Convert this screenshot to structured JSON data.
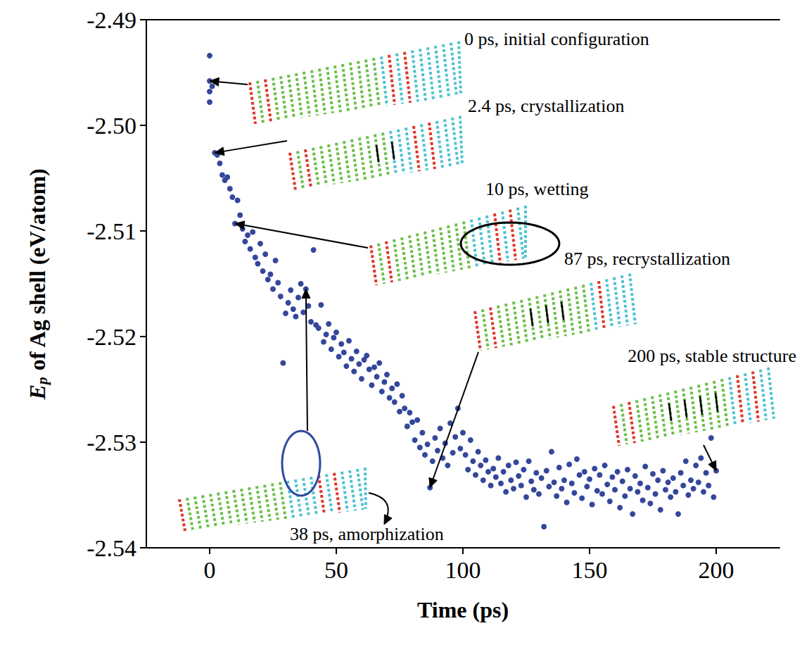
{
  "chart_data": {
    "type": "scatter",
    "x_label": "Time (ps)",
    "y_label": "Ep of Ag shell (eV/atom)",
    "color": "#35479b",
    "marker": "circle",
    "grid": false,
    "xlim": [
      -25,
      225
    ],
    "xticks": [
      0,
      50,
      100,
      150,
      200
    ],
    "ylim": [
      -2.54,
      -2.49
    ],
    "yticks": [
      -2.54,
      -2.53,
      -2.52,
      -2.51,
      {
        "value": -2.5,
        "label": "-2.50"
      },
      -2.49
    ],
    "annotations": [
      {
        "text": "0 ps, initial configuration",
        "time": 0
      },
      {
        "text": "2.4 ps, crystallization",
        "time": 2.4
      },
      {
        "text": "10 ps, wetting",
        "time": 10
      },
      {
        "text": "38 ps, amorphization",
        "time": 38
      },
      {
        "text": "87 ps, recrystallization",
        "time": 87
      },
      {
        "text": "200 ps, stable structure",
        "time": 200
      }
    ],
    "x": [
      0,
      0,
      0,
      0,
      1,
      2,
      3,
      4,
      5,
      6,
      7,
      8,
      9,
      10,
      11,
      12,
      13,
      14,
      15,
      16,
      17,
      18,
      19,
      20,
      21,
      22,
      23,
      24,
      25,
      26,
      27,
      28,
      29,
      30,
      31,
      32,
      33,
      34,
      35,
      36,
      37,
      38,
      39,
      40,
      41,
      42,
      43,
      44,
      45,
      46,
      47,
      48,
      49,
      50,
      51,
      52,
      53,
      54,
      55,
      56,
      57,
      58,
      59,
      60,
      61,
      62,
      63,
      64,
      65,
      66,
      67,
      68,
      69,
      70,
      71,
      72,
      73,
      74,
      75,
      76,
      77,
      78,
      79,
      80,
      81,
      82,
      83,
      84,
      85,
      86,
      87,
      88,
      89,
      90,
      91,
      92,
      93,
      94,
      95,
      96,
      97,
      98,
      99,
      100,
      101,
      102,
      103,
      104,
      105,
      106,
      107,
      108,
      109,
      110,
      111,
      112,
      113,
      114,
      115,
      116,
      117,
      118,
      119,
      120,
      121,
      122,
      123,
      124,
      125,
      126,
      127,
      128,
      129,
      130,
      131,
      132,
      133,
      134,
      135,
      136,
      137,
      138,
      139,
      140,
      141,
      142,
      143,
      144,
      145,
      146,
      147,
      148,
      149,
      150,
      151,
      152,
      153,
      154,
      155,
      156,
      157,
      158,
      159,
      160,
      161,
      162,
      163,
      164,
      165,
      166,
      167,
      168,
      169,
      170,
      171,
      172,
      173,
      174,
      175,
      176,
      177,
      178,
      179,
      180,
      181,
      182,
      183,
      184,
      185,
      186,
      187,
      188,
      189,
      190,
      191,
      192,
      193,
      194,
      195,
      196,
      197,
      198,
      199,
      200
    ],
    "values": [
      -2.4958,
      -2.4934,
      -2.4968,
      -2.4978,
      -2.4963,
      -2.5026,
      -2.5028,
      -2.5036,
      -2.5047,
      -2.5052,
      -2.5049,
      -2.506,
      -2.5068,
      -2.5093,
      -2.5071,
      -2.5085,
      -2.5098,
      -2.511,
      -2.5104,
      -2.5117,
      -2.5101,
      -2.5125,
      -2.5131,
      -2.5112,
      -2.5138,
      -2.5122,
      -2.5146,
      -2.5141,
      -2.5155,
      -2.5128,
      -2.5149,
      -2.5162,
      -2.5225,
      -2.5178,
      -2.5168,
      -2.5156,
      -2.5174,
      -2.5181,
      -2.5163,
      -2.515,
      -2.5177,
      -2.5155,
      -2.5171,
      -2.5186,
      -2.5118,
      -2.5189,
      -2.5192,
      -2.517,
      -2.5205,
      -2.5198,
      -2.5188,
      -2.5212,
      -2.5201,
      -2.5196,
      -2.5219,
      -2.5207,
      -2.5215,
      -2.5228,
      -2.5204,
      -2.5221,
      -2.5233,
      -2.5214,
      -2.5226,
      -2.524,
      -2.5222,
      -2.5218,
      -2.5231,
      -2.5246,
      -2.5229,
      -2.5238,
      -2.5225,
      -2.5252,
      -2.5243,
      -2.5236,
      -2.5258,
      -2.5249,
      -2.5262,
      -2.5245,
      -2.5271,
      -2.5256,
      -2.5268,
      -2.5285,
      -2.5272,
      -2.5281,
      -2.5298,
      -2.5279,
      -2.5305,
      -2.5291,
      -2.5312,
      -2.5302,
      -2.5343,
      -2.5318,
      -2.5296,
      -2.5308,
      -2.5287,
      -2.5315,
      -2.5301,
      -2.5322,
      -2.5282,
      -2.531,
      -2.5295,
      -2.5268,
      -2.5306,
      -2.5291,
      -2.5312,
      -2.5326,
      -2.5298,
      -2.5318,
      -2.5331,
      -2.5309,
      -2.5322,
      -2.5336,
      -2.5317,
      -2.5328,
      -2.5341,
      -2.5325,
      -2.5333,
      -2.5315,
      -2.5339,
      -2.5328,
      -2.5347,
      -2.5322,
      -2.5336,
      -2.5344,
      -2.5319,
      -2.5332,
      -2.5341,
      -2.5326,
      -2.5352,
      -2.5318,
      -2.5337,
      -2.5345,
      -2.5329,
      -2.5349,
      -2.5334,
      -2.538,
      -2.5327,
      -2.5342,
      -2.5309,
      -2.5338,
      -2.5351,
      -2.5324,
      -2.5344,
      -2.5336,
      -2.5357,
      -2.5321,
      -2.5339,
      -2.5348,
      -2.5316,
      -2.5331,
      -2.5353,
      -2.5328,
      -2.5342,
      -2.5335,
      -2.5359,
      -2.5325,
      -2.5346,
      -2.5331,
      -2.5349,
      -2.5322,
      -2.534,
      -2.5356,
      -2.5333,
      -2.5345,
      -2.5328,
      -2.5362,
      -2.5337,
      -2.5351,
      -2.5326,
      -2.5344,
      -2.5368,
      -2.5332,
      -2.5347,
      -2.5339,
      -2.5355,
      -2.5323,
      -2.5343,
      -2.5358,
      -2.533,
      -2.5349,
      -2.5336,
      -2.5364,
      -2.5327,
      -2.5345,
      -2.5338,
      -2.5352,
      -2.5334,
      -2.5347,
      -2.5368,
      -2.5329,
      -2.5341,
      -2.5318,
      -2.535,
      -2.5336,
      -2.5344,
      -2.5322,
      -2.5338,
      -2.5315,
      -2.5347,
      -2.5329,
      -2.5341,
      -2.5296,
      -2.5352,
      -2.5327
    ]
  }
}
